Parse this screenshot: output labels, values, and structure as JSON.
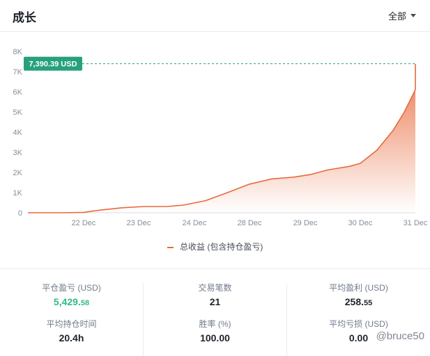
{
  "header": {
    "title": "成长",
    "filter_label": "全部"
  },
  "chart_data": {
    "type": "area",
    "x": [
      "",
      "22 Dec",
      "23 Dec",
      "24 Dec",
      "28 Dec",
      "29 Dec",
      "30 Dec",
      "31 Dec"
    ],
    "y_ticks": [
      "0",
      "1K",
      "2K",
      "3K",
      "4K",
      "5K",
      "6K",
      "7K",
      "8K"
    ],
    "ylim": [
      0,
      8000
    ],
    "series": [
      {
        "name": "总收益 (包含持仓盈亏)",
        "points": [
          [
            0,
            0
          ],
          [
            0.6,
            0
          ],
          [
            1.0,
            20
          ],
          [
            1.3,
            130
          ],
          [
            1.7,
            250
          ],
          [
            2.1,
            310
          ],
          [
            2.5,
            310
          ],
          [
            2.8,
            380
          ],
          [
            3.2,
            600
          ],
          [
            3.6,
            1000
          ],
          [
            4.0,
            1420
          ],
          [
            4.4,
            1680
          ],
          [
            4.8,
            1770
          ],
          [
            5.1,
            1900
          ],
          [
            5.4,
            2120
          ],
          [
            5.8,
            2300
          ],
          [
            6.0,
            2450
          ],
          [
            6.3,
            3100
          ],
          [
            6.6,
            4100
          ],
          [
            6.8,
            5000
          ],
          [
            7.0,
            6100
          ],
          [
            7.2,
            7390.39
          ]
        ],
        "color": "#e8693a"
      }
    ],
    "last_value_label": "7,390.39 USD",
    "label_color": "#26a17b",
    "grid": false
  },
  "legend": {
    "label": "总收益 (包含持仓盈亏)"
  },
  "stats": {
    "realized_pnl": {
      "label": "平仓盈亏 (USD)",
      "int": "5,429.",
      "dec": "58"
    },
    "trade_count": {
      "label": "交易笔数",
      "value": "21"
    },
    "avg_profit": {
      "label": "平均盈利 (USD)",
      "int": "258.",
      "dec": "55"
    },
    "avg_hold_time": {
      "label": "平均持仓时间",
      "value": "20.4h"
    },
    "win_rate": {
      "label": "胜率 (%)",
      "value": "100.00"
    },
    "avg_loss": {
      "label": "平均亏损 (USD)",
      "value": "0.00"
    }
  },
  "watermark": "@bruce50"
}
